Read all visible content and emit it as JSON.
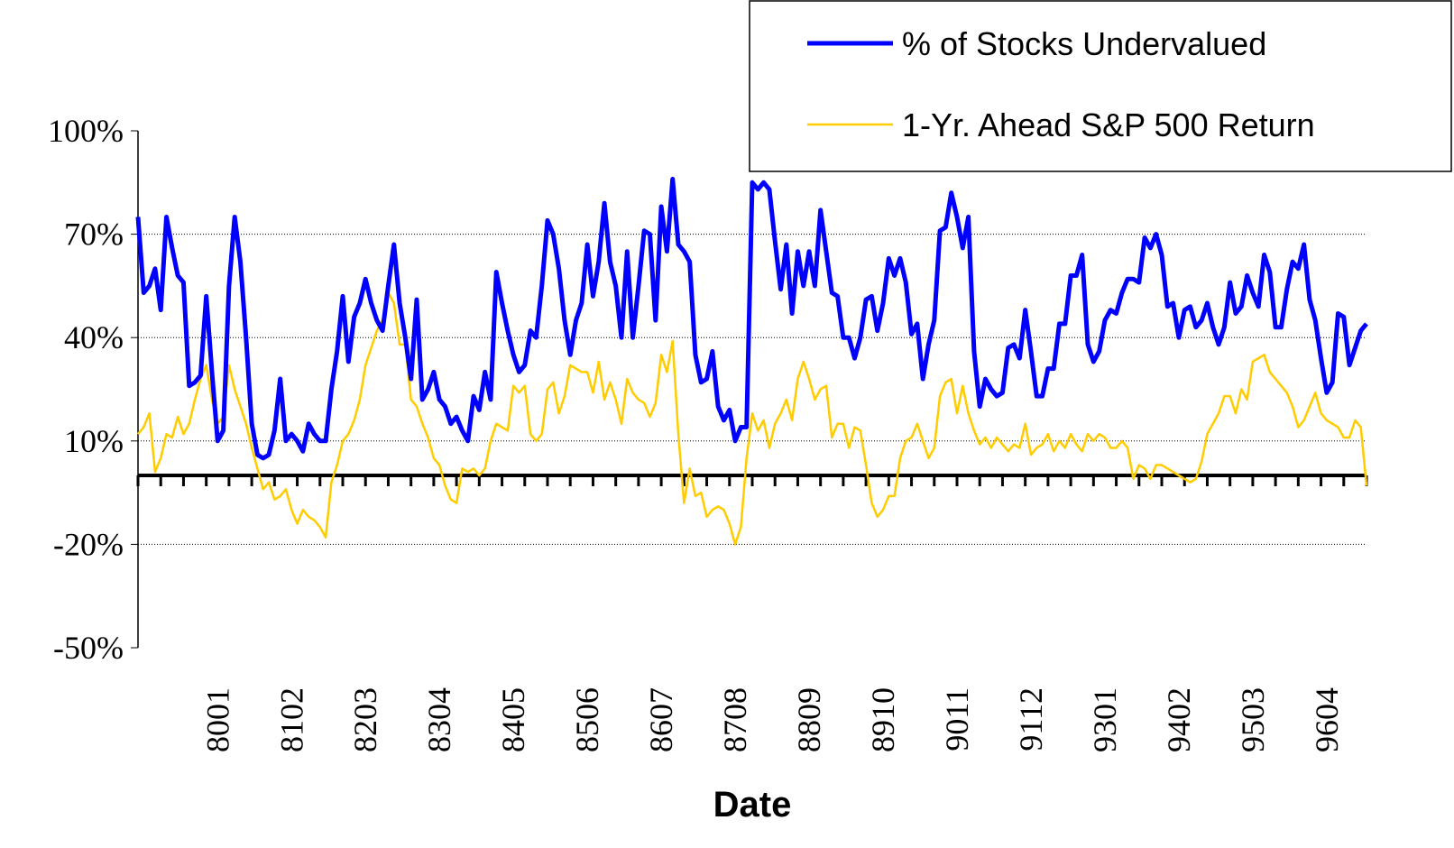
{
  "chart_data": {
    "type": "line",
    "x_label": "Date",
    "categories": [
      null,
      null,
      null,
      null,
      null,
      null,
      null,
      null,
      null,
      null,
      null,
      null,
      null,
      null,
      "8001",
      null,
      null,
      null,
      null,
      null,
      null,
      null,
      null,
      null,
      null,
      null,
      null,
      "8102",
      null,
      null,
      null,
      null,
      null,
      null,
      null,
      null,
      null,
      null,
      null,
      null,
      "8203",
      null,
      null,
      null,
      null,
      null,
      null,
      null,
      null,
      null,
      null,
      null,
      null,
      "8304",
      null,
      null,
      null,
      null,
      null,
      null,
      null,
      null,
      null,
      null,
      null,
      null,
      "8405",
      null,
      null,
      null,
      null,
      null,
      null,
      null,
      null,
      null,
      null,
      null,
      null,
      "8506",
      null,
      null,
      null,
      null,
      null,
      null,
      null,
      null,
      null,
      null,
      null,
      null,
      "8607",
      null,
      null,
      null,
      null,
      null,
      null,
      null,
      null,
      null,
      null,
      null,
      null,
      "8708",
      null,
      null,
      null,
      null,
      null,
      null,
      null,
      null,
      null,
      null,
      null,
      null,
      "8809",
      null,
      null,
      null,
      null,
      null,
      null,
      null,
      null,
      null,
      null,
      null,
      null,
      "8910",
      null,
      null,
      null,
      null,
      null,
      null,
      null,
      null,
      null,
      null,
      null,
      null,
      "9011",
      null,
      null,
      null,
      null,
      null,
      null,
      null,
      null,
      null,
      null,
      null,
      null,
      "9112",
      null,
      null,
      null,
      null,
      null,
      null,
      null,
      null,
      null,
      null,
      null,
      null,
      "9301",
      null,
      null,
      null,
      null,
      null,
      null,
      null,
      null,
      null,
      null,
      null,
      null,
      "9402",
      null,
      null,
      null,
      null,
      null,
      null,
      null,
      null,
      null,
      null,
      null,
      null,
      "9503",
      null,
      null,
      null,
      null,
      null,
      null,
      null,
      null,
      null,
      null,
      null,
      null,
      "9604",
      null,
      null,
      null,
      null,
      null,
      null,
      null
    ],
    "series": [
      {
        "name": "% of Stocks Undervalued",
        "color": "#0000ff",
        "width": 5,
        "values": [
          75,
          53,
          55,
          60,
          48,
          75,
          66,
          58,
          56,
          26,
          27,
          29,
          52,
          30,
          10,
          13,
          55,
          75,
          62,
          40,
          15,
          6,
          5,
          6,
          13,
          28,
          10,
          12,
          10,
          7,
          15,
          12,
          10,
          10,
          25,
          36,
          52,
          33,
          46,
          50,
          57,
          50,
          45,
          42,
          55,
          67,
          50,
          40,
          28,
          51,
          22,
          25,
          30,
          22,
          20,
          15,
          17,
          13,
          10,
          23,
          19,
          30,
          22,
          59,
          50,
          42,
          35,
          30,
          32,
          42,
          40,
          55,
          74,
          70,
          60,
          45,
          35,
          45,
          50,
          67,
          52,
          62,
          79,
          62,
          55,
          40,
          65,
          40,
          55,
          71,
          70,
          45,
          78,
          65,
          86,
          67,
          65,
          62,
          35,
          27,
          28,
          36,
          20,
          16,
          19,
          10,
          14,
          14,
          85,
          83,
          85,
          83,
          68,
          54,
          67,
          47,
          65,
          55,
          65,
          55,
          77,
          65,
          53,
          52,
          40,
          40,
          34,
          40,
          51,
          52,
          42,
          50,
          63,
          58,
          63,
          56,
          41,
          44,
          28,
          38,
          45,
          71,
          72,
          82,
          75,
          66,
          75,
          36,
          20,
          28,
          25,
          23,
          24,
          37,
          38,
          34,
          48,
          36,
          23,
          23,
          31,
          31,
          44,
          44,
          58,
          58,
          64,
          38,
          33,
          36,
          45,
          48,
          47,
          53,
          57,
          57,
          56,
          69,
          66,
          70,
          64,
          49,
          50,
          40,
          48,
          49,
          43,
          45,
          50,
          43,
          38,
          43,
          56,
          47,
          49,
          58,
          53,
          49,
          64,
          59,
          43,
          43,
          54,
          62,
          60,
          67,
          51,
          45,
          34,
          24,
          27,
          47,
          46,
          32,
          37,
          42,
          44
        ]
      },
      {
        "name": "1-Yr. Ahead S&P 500 Return",
        "color": "#ffcc00",
        "width": 2.5,
        "values": [
          12,
          14,
          18,
          1,
          5,
          12,
          11,
          17,
          12,
          15,
          22,
          28,
          32,
          22,
          15,
          17,
          32,
          25,
          20,
          15,
          8,
          2,
          -4,
          -2,
          -7,
          -6,
          -4,
          -10,
          -14,
          -10,
          -12,
          -13,
          -15,
          -18,
          -2,
          3,
          10,
          12,
          16,
          22,
          32,
          37,
          42,
          45,
          53,
          50,
          38,
          38,
          22,
          20,
          15,
          11,
          5,
          3,
          -3,
          -7,
          -8,
          2,
          1,
          2,
          0,
          2,
          10,
          15,
          14,
          13,
          26,
          24,
          26,
          12,
          10,
          12,
          25,
          27,
          18,
          23,
          32,
          31,
          30,
          30,
          24,
          33,
          22,
          27,
          22,
          15,
          28,
          24,
          22,
          21,
          17,
          21,
          35,
          30,
          39,
          12,
          -8,
          2,
          -6,
          -5,
          -12,
          -10,
          -9,
          -10,
          -14,
          -20,
          -15,
          5,
          18,
          13,
          16,
          8,
          15,
          18,
          22,
          16,
          28,
          33,
          28,
          22,
          25,
          26,
          11,
          15,
          15,
          8,
          14,
          13,
          3,
          -8,
          -12,
          -10,
          -6,
          -6,
          5,
          10,
          11,
          15,
          10,
          5,
          8,
          23,
          27,
          28,
          18,
          26,
          18,
          13,
          9,
          11,
          8,
          11,
          9,
          7,
          9,
          8,
          15,
          6,
          8,
          9,
          12,
          7,
          10,
          8,
          12,
          9,
          7,
          12,
          10,
          12,
          11,
          8,
          8,
          10,
          8,
          -1,
          3,
          2,
          -1,
          3,
          3,
          2,
          1,
          0,
          -1,
          -2,
          -1,
          4,
          12,
          15,
          18,
          23,
          23,
          18,
          25,
          22,
          33,
          34,
          35,
          30,
          28,
          26,
          24,
          20,
          14,
          16,
          20,
          24,
          18,
          16,
          15,
          14,
          11,
          11,
          16,
          14,
          -3
        ]
      }
    ],
    "ylim": [
      -50,
      100
    ],
    "yticks": [
      {
        "value": 100,
        "label": "100%"
      },
      {
        "value": 70,
        "label": "70%"
      },
      {
        "value": 40,
        "label": "40%"
      },
      {
        "value": 10,
        "label": "10%"
      },
      {
        "value": -20,
        "label": "-20%"
      },
      {
        "value": -50,
        "label": "-50%"
      }
    ],
    "grid": true,
    "legend": "top-right"
  }
}
